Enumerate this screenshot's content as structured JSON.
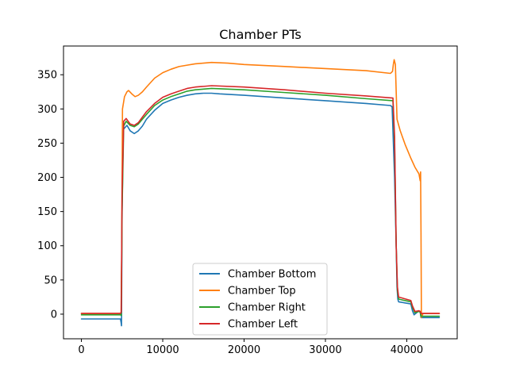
{
  "chart_data": {
    "type": "line",
    "title": "Chamber PTs",
    "xlabel": "",
    "ylabel": "",
    "xlim": [
      -2200,
      46200
    ],
    "ylim": [
      -36,
      392
    ],
    "xticks": [
      0,
      10000,
      20000,
      30000,
      40000
    ],
    "yticks": [
      0,
      50,
      100,
      150,
      200,
      250,
      300,
      350
    ],
    "grid": false,
    "legend_position": "lower center",
    "series": [
      {
        "name": "Chamber Bottom",
        "color": "#1f77b4",
        "x": [
          0,
          4800,
          4880,
          4930,
          5000,
          5150,
          5600,
          6000,
          6500,
          7000,
          7500,
          8000,
          9000,
          10000,
          11000,
          12000,
          13000,
          14000,
          15000,
          16000,
          17000,
          20000,
          25000,
          30000,
          35000,
          38000,
          38200,
          38500,
          38700,
          38800,
          38900,
          39000,
          40500,
          40700,
          40900,
          41200,
          41500,
          41650,
          41750,
          42000,
          44000
        ],
        "y": [
          -7,
          -7,
          -12,
          -17,
          150,
          270,
          276,
          268,
          264,
          268,
          275,
          285,
          298,
          308,
          313,
          317,
          320,
          322,
          323,
          323,
          322,
          320,
          316,
          312,
          308,
          305,
          303,
          200,
          100,
          40,
          22,
          18,
          15,
          5,
          -1,
          2,
          5,
          3,
          -5,
          -5,
          -5
        ]
      },
      {
        "name": "Chamber Top",
        "color": "#ff7f0e",
        "x": [
          0,
          4800,
          4880,
          4950,
          5050,
          5300,
          5600,
          5800,
          6200,
          6600,
          7000,
          7500,
          8000,
          9000,
          10000,
          11000,
          12000,
          13000,
          14000,
          15000,
          16000,
          18000,
          20000,
          25000,
          30000,
          35000,
          38000,
          38250,
          38350,
          38450,
          38600,
          38800,
          39200,
          39800,
          40500,
          41000,
          41500,
          41650,
          41700,
          41750,
          41800,
          42000,
          44000
        ],
        "y": [
          1,
          1,
          2,
          80,
          300,
          318,
          325,
          327,
          322,
          318,
          320,
          325,
          332,
          345,
          353,
          358,
          362,
          364,
          366,
          367,
          368,
          367,
          365,
          362,
          359,
          356,
          352,
          355,
          365,
          372,
          365,
          285,
          268,
          248,
          228,
          215,
          205,
          195,
          208,
          120,
          -5,
          1,
          1
        ]
      },
      {
        "name": "Chamber Right",
        "color": "#2ca02c",
        "x": [
          0,
          4800,
          4900,
          5000,
          5200,
          5500,
          6000,
          6500,
          7000,
          7500,
          8000,
          9000,
          10000,
          11000,
          12000,
          13000,
          14000,
          15000,
          16000,
          20000,
          25000,
          30000,
          35000,
          38300,
          38500,
          38700,
          38850,
          39000,
          40500,
          40700,
          41000,
          41500,
          41650,
          41750,
          42000,
          44000
        ],
        "y": [
          -1,
          -1,
          -2,
          150,
          275,
          282,
          276,
          274,
          278,
          285,
          292,
          305,
          313,
          318,
          322,
          326,
          328,
          329,
          330,
          328,
          324,
          320,
          315,
          312,
          250,
          100,
          35,
          22,
          18,
          10,
          2,
          4,
          3,
          -3,
          -3,
          -3
        ]
      },
      {
        "name": "Chamber Left",
        "color": "#d62728",
        "x": [
          0,
          4800,
          4900,
          5000,
          5200,
          5500,
          6000,
          6500,
          7000,
          7500,
          8000,
          9000,
          10000,
          11000,
          12000,
          13000,
          14000,
          15000,
          16000,
          20000,
          25000,
          30000,
          35000,
          38300,
          38500,
          38700,
          38850,
          39000,
          40500,
          40700,
          41000,
          41500,
          41650,
          41750,
          42000,
          44000
        ],
        "y": [
          1,
          1,
          3,
          180,
          282,
          286,
          278,
          276,
          280,
          288,
          296,
          308,
          317,
          322,
          326,
          330,
          332,
          333,
          334,
          332,
          328,
          323,
          319,
          316,
          260,
          100,
          40,
          25,
          20,
          12,
          4,
          5,
          4,
          1,
          1,
          1
        ]
      }
    ]
  }
}
